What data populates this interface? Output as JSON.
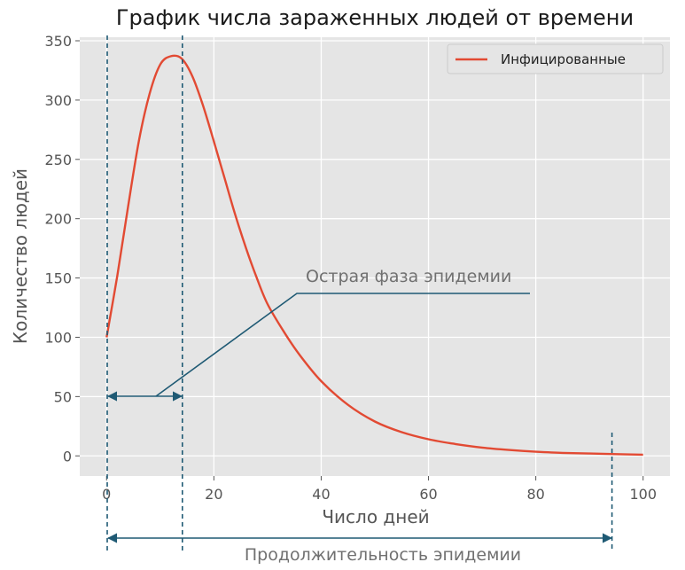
{
  "chart_data": {
    "type": "line",
    "title": "График числа зараженных людей от времени",
    "xlabel": "Число дней",
    "ylabel": "Количество людей",
    "xlim": [
      -5,
      105
    ],
    "ylim": [
      -17,
      353
    ],
    "x_ticks": [
      0,
      20,
      40,
      60,
      80,
      100
    ],
    "y_ticks": [
      0,
      50,
      100,
      150,
      200,
      250,
      300,
      350
    ],
    "grid": true,
    "legend": "top-right",
    "series": [
      {
        "name": "Инфицированные",
        "color": "#E24A33",
        "x": [
          0,
          2,
          4,
          6,
          8,
          10,
          12,
          14,
          16,
          18,
          20,
          22,
          24,
          26,
          28,
          30,
          33,
          36,
          40,
          45,
          50,
          55,
          60,
          65,
          70,
          75,
          80,
          85,
          90,
          95,
          100
        ],
        "values": [
          100,
          152,
          210,
          265,
          305,
          330,
          337,
          335,
          320,
          295,
          265,
          234,
          203,
          175,
          150,
          128,
          105,
          85,
          63,
          43,
          29,
          20,
          14,
          10,
          7,
          5,
          3.5,
          2.5,
          2,
          1.5,
          1
        ]
      }
    ],
    "annotations": {
      "acute_phase": {
        "label": "Острая фаза эпидемии",
        "from_x": 0,
        "to_x": 14,
        "marker_y": 50
      },
      "duration": {
        "label": "Продолжительность эпидемии",
        "from_x": 0,
        "to_x": 94
      }
    }
  },
  "colors": {
    "plot_bg": "#E5E5E5",
    "grid": "#FFFFFF",
    "annotation": "#1F5A74"
  }
}
